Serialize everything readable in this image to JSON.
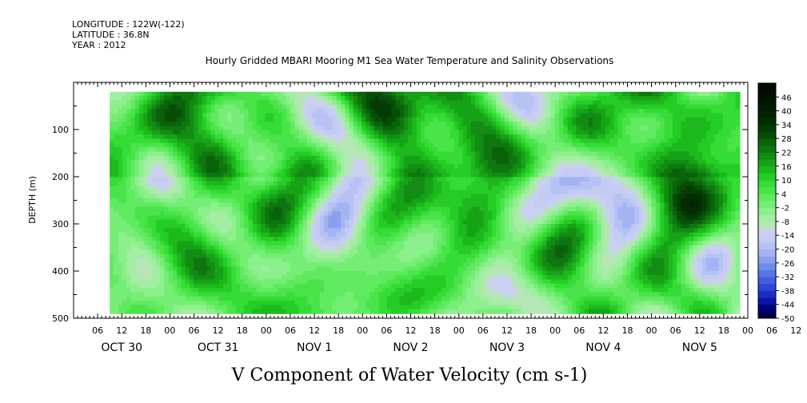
{
  "header": {
    "longitude": "LONGITUDE : 122W(-122)",
    "latitude": "LATITUDE : 36.8N",
    "year": "YEAR : 2012"
  },
  "chart_data": {
    "type": "heatmap",
    "title": "Hourly Gridded MBARI Mooring M1 Sea Water Temperature and Salinity Observations",
    "xlabel": "V Component of Water Velocity (cm s-1)",
    "ylabel": "DEPTH (m)",
    "x_hour_ticks": [
      "06",
      "12",
      "18",
      "00",
      "06",
      "12",
      "18",
      "00",
      "06",
      "12",
      "18",
      "00",
      "06",
      "12",
      "18",
      "00",
      "06",
      "12",
      "18",
      "00",
      "06",
      "12",
      "18",
      "00",
      "06",
      "12",
      "18",
      "00",
      "06",
      "12",
      "18",
      "00"
    ],
    "x_day_labels": [
      "OCT 30",
      "OCT 31",
      "NOV  1",
      "NOV  2",
      "NOV  3",
      "NOV  4",
      "NOV  5"
    ],
    "xlim_hours": [
      0,
      168
    ],
    "y_ticks": [
      100,
      200,
      300,
      400,
      500
    ],
    "ylim": [
      0,
      500
    ],
    "data_depth_range": [
      20,
      490
    ],
    "data_time_start_hour": 9,
    "colorbar": {
      "labels": [
        "46",
        "40",
        "34",
        "28",
        "22",
        "16",
        "10",
        "4",
        "-2",
        "-8",
        "-14",
        "-20",
        "-26",
        "-32",
        "-38",
        "-44",
        "-50"
      ],
      "min": -50,
      "max": 52,
      "step": 3,
      "colors": [
        "#00004d",
        "#00007a",
        "#0a14a8",
        "#1a2ec4",
        "#2c46d6",
        "#3f5ee0",
        "#5676e6",
        "#6c8ceb",
        "#8aa0ef",
        "#a4b4f2",
        "#b6c2f4",
        "#c4ccf4",
        "#cad0f0",
        "#b6e6b6",
        "#a2eea2",
        "#8cf08c",
        "#76ee76",
        "#60ea60",
        "#4ae44a",
        "#36dc36",
        "#26cc26",
        "#1cb81c",
        "#16a216",
        "#128c12",
        "#0e760e",
        "#0a620a",
        "#064e06",
        "#043c04",
        "#032e03",
        "#022402",
        "#021c02",
        "#011401",
        "#010e01",
        "#010a01"
      ]
    },
    "field_description_note": ""
  }
}
